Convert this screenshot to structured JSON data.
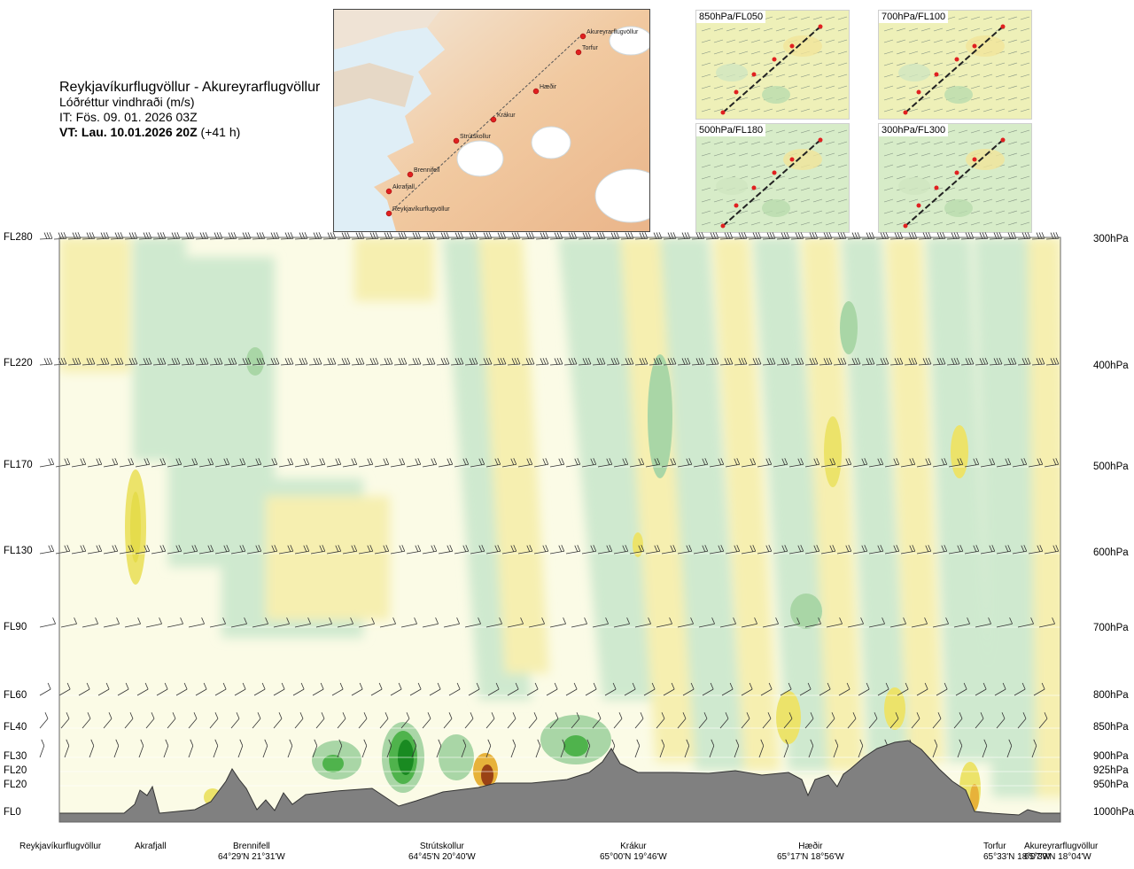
{
  "header": {
    "route": "Reykjavíkurflugvöllur - Akureyrarflugvöllur",
    "variable": "Lóðréttur vindhraði (m/s)",
    "issue_time": "IT: Fös. 09. 01. 2026 03Z",
    "valid_time_bold": "VT: Lau. 10.01.2026 20Z",
    "valid_time_offset": "(+41 h)"
  },
  "route_map": {
    "points": [
      "Akureyrarflugvöllur",
      "Torfur",
      "Hæðir",
      "Krákur",
      "Strútskollur",
      "Brennifell",
      "Akrafjall",
      "Reykjavíkurflugvöllur"
    ]
  },
  "mini_maps": [
    {
      "label": "850hPa/FL050"
    },
    {
      "label": "700hPa/FL100"
    },
    {
      "label": "500hPa/FL180"
    },
    {
      "label": "300hPa/FL300"
    }
  ],
  "flight_levels": [
    {
      "label": "FL280"
    },
    {
      "label": "FL220"
    },
    {
      "label": "FL170"
    },
    {
      "label": "FL130"
    },
    {
      "label": "FL90"
    },
    {
      "label": "FL60"
    },
    {
      "label": "FL40"
    },
    {
      "label": "FL30"
    },
    {
      "label": "FL20"
    },
    {
      "label": "FL20"
    },
    {
      "label": "FL0"
    }
  ],
  "pressure_levels": [
    {
      "label": "300hPa"
    },
    {
      "label": "400hPa"
    },
    {
      "label": "500hPa"
    },
    {
      "label": "600hPa"
    },
    {
      "label": "700hPa"
    },
    {
      "label": "800hPa"
    },
    {
      "label": "850hPa"
    },
    {
      "label": "900hPa"
    },
    {
      "label": "925hPa"
    },
    {
      "label": "950hPa"
    },
    {
      "label": "1000hPa"
    }
  ],
  "locations": [
    {
      "name": "Reykjavíkurflugvöllur",
      "coord": ""
    },
    {
      "name": "Akrafjall",
      "coord": ""
    },
    {
      "name": "Brennifell",
      "coord": "64°29'N 21°31'W"
    },
    {
      "name": "Strútskollur",
      "coord": "64°45'N 20°40'W"
    },
    {
      "name": "Krákur",
      "coord": "65°00'N 19°46'W"
    },
    {
      "name": "Hæðir",
      "coord": "65°17'N 18°56'W"
    },
    {
      "name": "Torfur",
      "coord": "65°33'N 18°07'W"
    },
    {
      "name": "Akureyrarflugvöllur",
      "coord": "65°39'N 18°04'W"
    }
  ],
  "colors": {
    "updraft_weak": "#f6efb0",
    "updraft_mod": "#ece36a",
    "updraft_strong": "#e7b23a",
    "updraft_vstrong": "#9a4215",
    "downdraft_weak": "#cfe9cf",
    "downdraft_mod": "#a9d6a6",
    "downdraft_strong": "#4fb34c",
    "downdraft_vstrong": "#198a21",
    "neutral": "#fbfbe6",
    "terrain": "#808080"
  },
  "chart_data": {
    "type": "heatmap",
    "title": "Lóðréttur vindhraði (m/s)",
    "x_stations": [
      "Reykjavíkurflugvöllur",
      "Akrafjall",
      "Brennifell",
      "Strútskollur",
      "Krákur",
      "Hæðir",
      "Torfur",
      "Akureyrarflugvöllur"
    ],
    "y_left_labels": [
      "FL280",
      "FL220",
      "FL170",
      "FL130",
      "FL90",
      "FL60",
      "FL40",
      "FL30",
      "FL20",
      "FL20",
      "FL0"
    ],
    "y_right_labels": [
      "300hPa",
      "400hPa",
      "500hPa",
      "600hPa",
      "700hPa",
      "800hPa",
      "850hPa",
      "900hPa",
      "925hPa",
      "950hPa",
      "1000hPa"
    ],
    "features": [
      {
        "kind": "updraft",
        "station": "Akrafjall",
        "level": "500hPa",
        "strength": "moderate"
      },
      {
        "kind": "downdraft",
        "station": "Strútskollur",
        "level": "900hPa",
        "strength": "very strong"
      },
      {
        "kind": "updraft",
        "station": "Strútskollur",
        "level": "950hPa",
        "strength": "very strong"
      },
      {
        "kind": "downdraft",
        "station": "Krákur",
        "level": "850hPa",
        "strength": "strong"
      },
      {
        "kind": "updraft",
        "station": "Hæðir",
        "level": "800hPa",
        "strength": "moderate"
      },
      {
        "kind": "updraft",
        "station": "Torfur",
        "level": "500hPa",
        "strength": "moderate"
      }
    ]
  }
}
